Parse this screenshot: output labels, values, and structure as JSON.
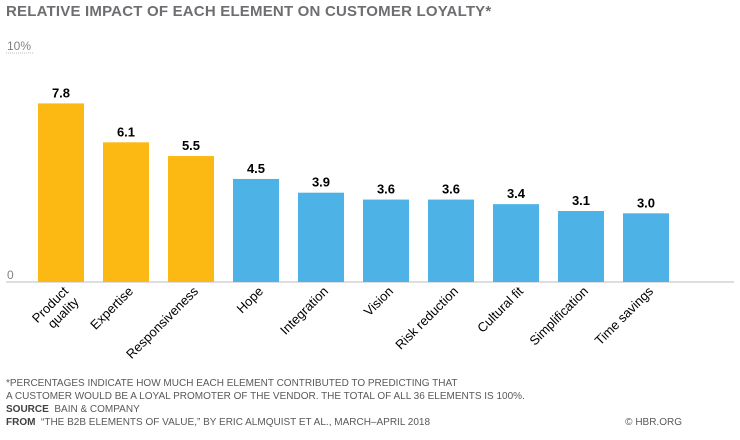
{
  "chart_data": {
    "type": "bar",
    "title": "RELATIVE IMPACT OF EACH ELEMENT ON CUSTOMER LOYALTY*",
    "categories": [
      "Product quality",
      "Expertise",
      "Responsiveness",
      "Hope",
      "Integration",
      "Vision",
      "Risk reduction",
      "Cultural fit",
      "Simplification",
      "Time savings"
    ],
    "values": [
      7.8,
      6.1,
      5.5,
      4.5,
      3.9,
      3.6,
      3.6,
      3.4,
      3.1,
      3.0
    ],
    "value_labels": [
      "7.8",
      "6.1",
      "5.5",
      "4.5",
      "3.9",
      "3.6",
      "3.6",
      "3.4",
      "3.1",
      "3.0"
    ],
    "bar_colors": [
      "#FDB913",
      "#FDB913",
      "#FDB913",
      "#4DB3E6",
      "#4DB3E6",
      "#4DB3E6",
      "#4DB3E6",
      "#4DB3E6",
      "#4DB3E6",
      "#4DB3E6"
    ],
    "ylim": [
      0,
      10
    ],
    "ytick_labels": [
      "0",
      "10%"
    ],
    "grid": false,
    "xlabel": "",
    "ylabel": ""
  },
  "footnote": {
    "line1": "*PERCENTAGES INDICATE HOW MUCH EACH ELEMENT CONTRIBUTED TO PREDICTING THAT",
    "line2": "A CUSTOMER WOULD BE A LOYAL PROMOTER OF THE VENDOR. THE TOTAL OF ALL 36 ELEMENTS IS 100%.",
    "source_label": "SOURCE",
    "source": "BAIN & COMPANY",
    "from_label": "FROM",
    "from": "“THE B2B ELEMENTS OF VALUE,” BY ERIC ALMQUIST ET AL., MARCH–APRIL 2018",
    "copyright": "© HBR.ORG"
  }
}
